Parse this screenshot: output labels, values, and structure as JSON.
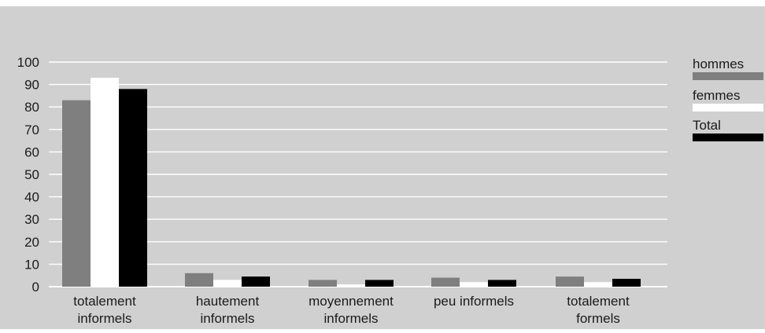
{
  "chart_data": {
    "type": "bar",
    "categories": [
      [
        "totalement",
        "informels"
      ],
      [
        "hautement",
        "informels"
      ],
      [
        "moyennement",
        "informels"
      ],
      [
        "peu informels"
      ],
      [
        "totalement",
        "formels"
      ]
    ],
    "series": [
      {
        "name": "hommes",
        "color": "#7f7f7f",
        "values": [
          83,
          6,
          3,
          4,
          4.5
        ]
      },
      {
        "name": "femmes",
        "color": "#ffffff",
        "values": [
          93,
          3,
          1,
          2,
          2
        ]
      },
      {
        "name": "Total",
        "color": "#000000",
        "values": [
          88,
          4.5,
          3,
          3,
          3.5
        ]
      }
    ],
    "yticks": [
      0,
      10,
      20,
      30,
      40,
      50,
      60,
      70,
      80,
      90,
      100
    ],
    "ylim": [
      0,
      100
    ],
    "grid": true,
    "legend_position": "right",
    "colors": {
      "background": "#d0d0d0",
      "grid": "#ffffff",
      "text": "#1a1a1a"
    }
  }
}
